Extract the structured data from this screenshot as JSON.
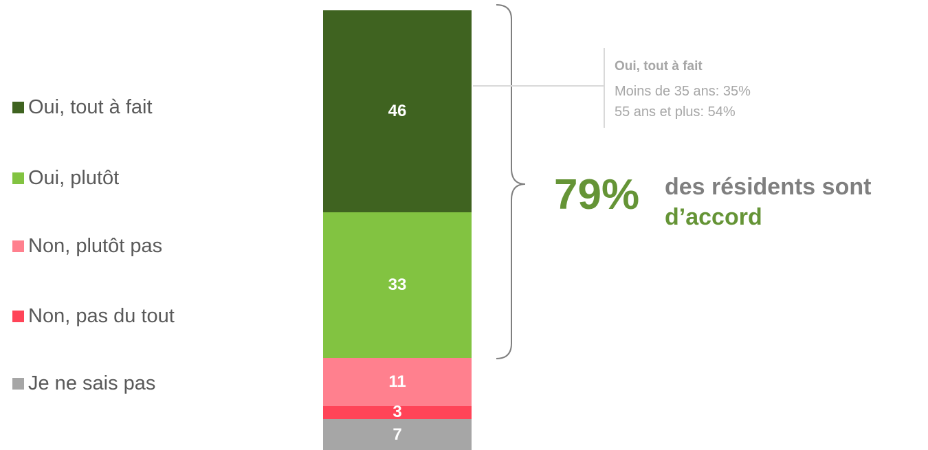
{
  "chart_data": {
    "type": "bar",
    "stacked": true,
    "orientation": "vertical",
    "categories": [
      ""
    ],
    "series": [
      {
        "name": "Oui, tout à fait",
        "values": [
          46
        ],
        "color": "#3f6320"
      },
      {
        "name": "Oui, plutôt",
        "values": [
          33
        ],
        "color": "#82c341"
      },
      {
        "name": "Non, plutôt pas",
        "values": [
          11
        ],
        "color": "#ff808e"
      },
      {
        "name": "Non, pas du tout",
        "values": [
          3
        ],
        "color": "#ff4458"
      },
      {
        "name": "Je ne sais pas",
        "values": [
          7
        ],
        "color": "#a6a6a6"
      }
    ],
    "legend": "left",
    "grid": false,
    "annotations": {
      "brace_covers": [
        "Oui, tout à fait",
        "Oui, plutôt"
      ],
      "summary_value": "79%",
      "summary_line1": "des résidents sont",
      "summary_line2": "d’accord",
      "callout_title": "Oui, tout à fait",
      "callout_lines": [
        "Moins de 35 ans: 35%",
        "55 ans et plus: 54%"
      ]
    }
  },
  "colors": {
    "summary_green": "#659436",
    "summary_gray": "#7f7f7f",
    "callout_gray": "#a6a6a6",
    "brace_gray": "#7f7f7f"
  }
}
